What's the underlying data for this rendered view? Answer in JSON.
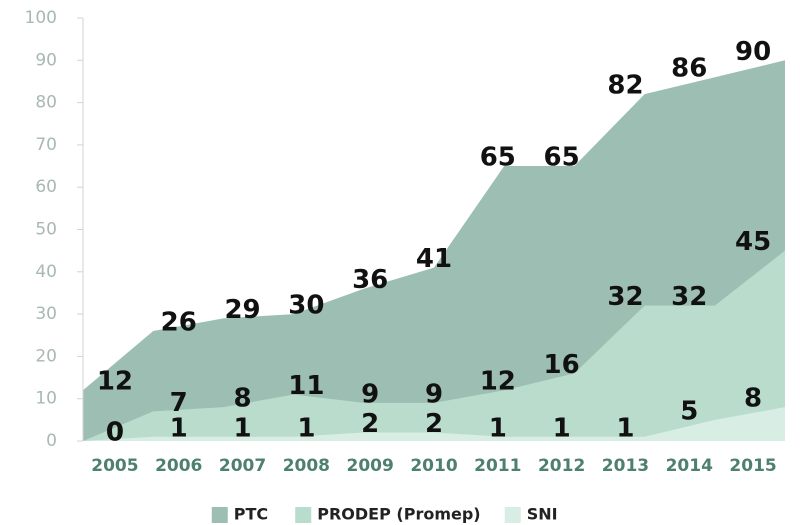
{
  "chart_data": {
    "type": "area",
    "categories": [
      "2005",
      "2006",
      "2007",
      "2008",
      "2009",
      "2010",
      "2011",
      "2012",
      "2013",
      "2014",
      "2015"
    ],
    "series": [
      {
        "name": "PTC",
        "color": "#9dbfb3",
        "values": [
          12,
          26,
          29,
          30,
          36,
          41,
          65,
          65,
          82,
          86,
          90
        ]
      },
      {
        "name": "PRODEP (Promep)",
        "color": "#b9dccd",
        "values": [
          0,
          7,
          8,
          11,
          9,
          9,
          12,
          16,
          32,
          32,
          45
        ]
      },
      {
        "name": "SNI",
        "color": "#d8ede4",
        "values": [
          0,
          1,
          1,
          1,
          2,
          2,
          1,
          1,
          1,
          5,
          8
        ]
      }
    ],
    "ylim": [
      0,
      100
    ],
    "yticks": [
      0,
      10,
      20,
      30,
      40,
      50,
      60,
      70,
      80,
      90,
      100
    ],
    "legend": "bottom"
  }
}
